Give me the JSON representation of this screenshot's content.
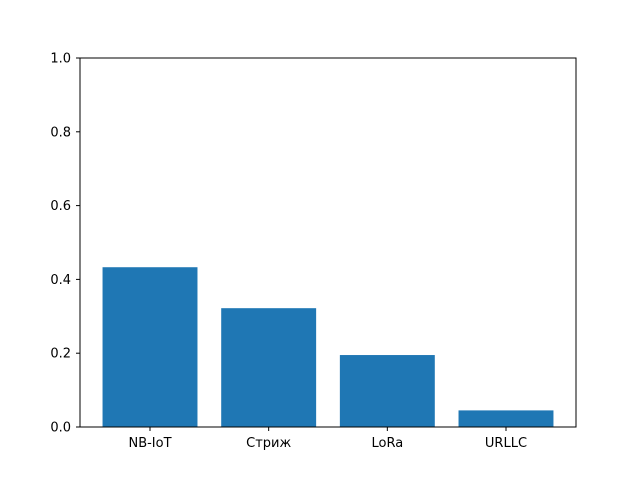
{
  "chart_data": {
    "type": "bar",
    "categories": [
      "NB-IoT",
      "Стриж",
      "LoRa",
      "URLLC"
    ],
    "values": [
      0.433,
      0.322,
      0.195,
      0.045
    ],
    "title": "",
    "xlabel": "",
    "ylabel": "",
    "ylim": [
      0,
      1.0
    ],
    "yticks": [
      0.0,
      0.2,
      0.4,
      0.6,
      0.8,
      1.0
    ],
    "ytick_labels": [
      "0.0",
      "0.2",
      "0.4",
      "0.6",
      "0.8",
      "1.0"
    ],
    "grid": false,
    "legend": "none",
    "bar_color": "#1f77b4"
  }
}
